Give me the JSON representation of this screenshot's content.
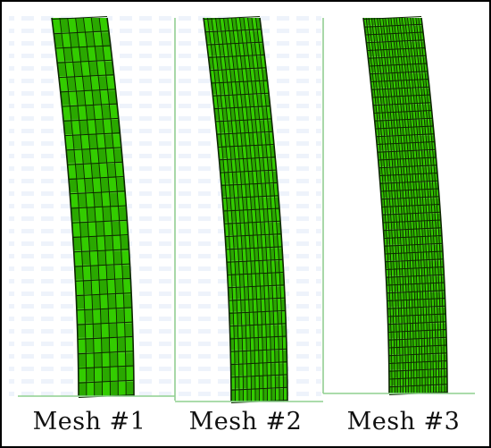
{
  "figure": {
    "panels": [
      {
        "label": "Mesh #1",
        "radial_divisions": 7,
        "axial_divisions": 26
      },
      {
        "label": "Mesh #2",
        "radial_divisions": 14,
        "axial_divisions": 30
      },
      {
        "label": "Mesh #3",
        "radial_divisions": 21,
        "axial_divisions": 48
      }
    ],
    "colors": {
      "element_fill": "#33cc00",
      "element_fill_dark": "#2aa800",
      "mesh_line": "#0d2600",
      "ground_line": "#8fd08f",
      "frame": "#000000",
      "background_pattern": "#ccd9f2"
    }
  }
}
